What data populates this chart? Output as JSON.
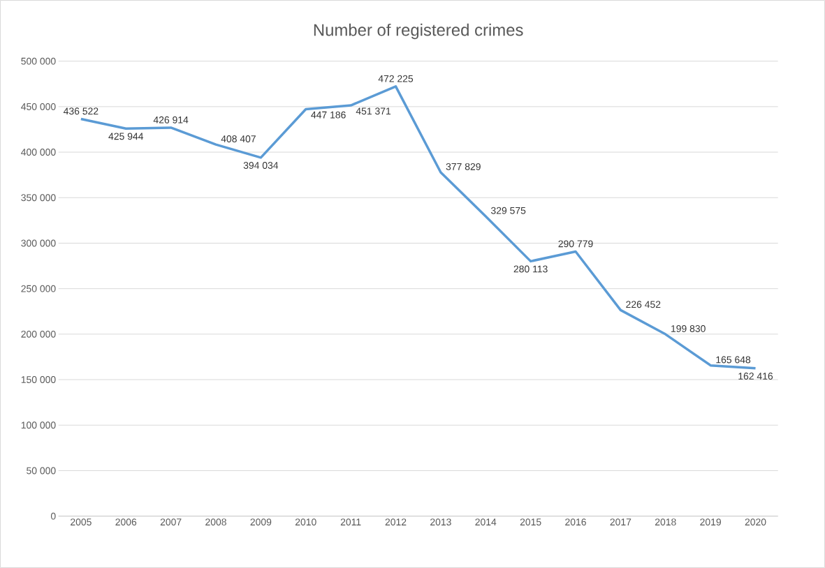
{
  "chart_data": {
    "type": "line",
    "title": "Number of registered crimes",
    "categories": [
      "2005",
      "2006",
      "2007",
      "2008",
      "2009",
      "2010",
      "2011",
      "2012",
      "2013",
      "2014",
      "2015",
      "2016",
      "2017",
      "2018",
      "2019",
      "2020"
    ],
    "values": [
      436522,
      425944,
      426914,
      408407,
      394034,
      447186,
      451371,
      472225,
      377829,
      329575,
      280113,
      290779,
      226452,
      199830,
      165648,
      162416
    ],
    "value_labels": [
      "436 522",
      "425 944",
      "426 914",
      "408 407",
      "394 034",
      "447 186",
      "451 371",
      "472 225",
      "377 829",
      "329 575",
      "280 113",
      "290 779",
      "226 452",
      "199 830",
      "165 648",
      "162 416"
    ],
    "color": "#5b9bd5",
    "ylim": [
      0,
      500000
    ],
    "yticks": [
      {
        "value": 0,
        "label": "0"
      },
      {
        "value": 50000,
        "label": "50 000"
      },
      {
        "value": 100000,
        "label": "100 000"
      },
      {
        "value": 150000,
        "label": "150 000"
      },
      {
        "value": 200000,
        "label": "200 000"
      },
      {
        "value": 250000,
        "label": "250 000"
      },
      {
        "value": 300000,
        "label": "300 000"
      },
      {
        "value": 350000,
        "label": "350 000"
      },
      {
        "value": 400000,
        "label": "400 000"
      },
      {
        "value": 450000,
        "label": "450 000"
      },
      {
        "value": 500000,
        "label": "500 000"
      }
    ],
    "grid": "y"
  }
}
